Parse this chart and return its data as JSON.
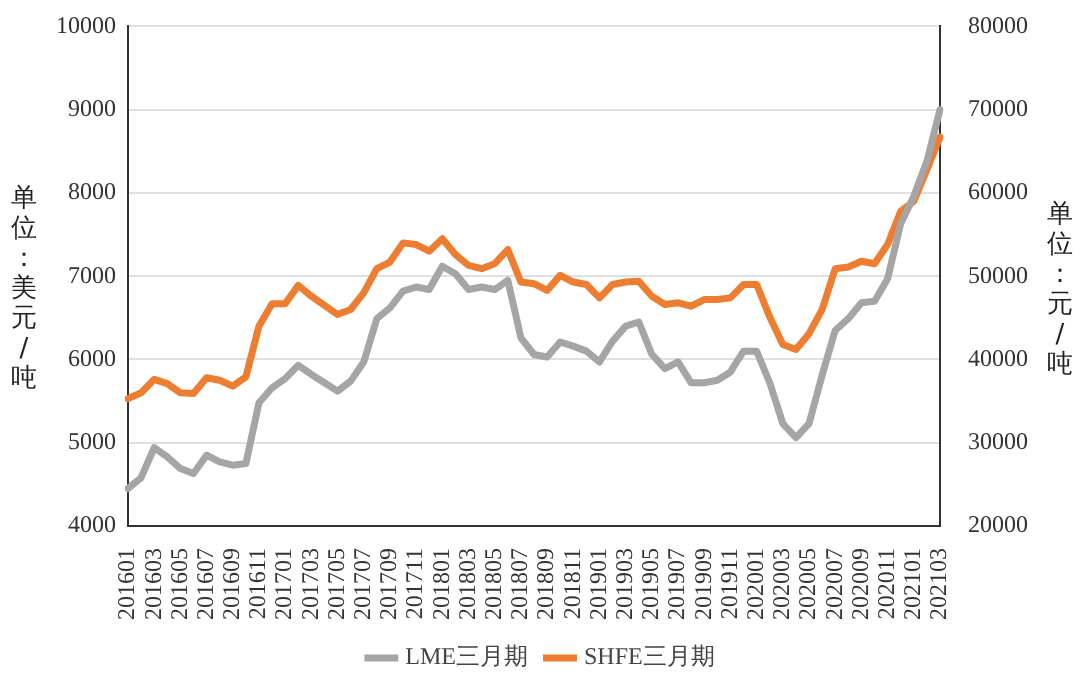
{
  "chart_data": {
    "type": "line",
    "ylabel": "单位：美元/吨",
    "y2label": "单位：元/吨",
    "categories": [
      "201601",
      null,
      "201603",
      null,
      "201605",
      null,
      "201607",
      null,
      "201609",
      null,
      "201611",
      null,
      "201701",
      null,
      "201703",
      null,
      "201705",
      null,
      "201707",
      null,
      "201709",
      null,
      "201711",
      null,
      "201801",
      null,
      "201803",
      null,
      "201805",
      null,
      "201807",
      null,
      "201809",
      null,
      "201811",
      null,
      "201901",
      null,
      "201903",
      null,
      "201905",
      null,
      "201907",
      null,
      "201909",
      null,
      "201911",
      null,
      "202001",
      null,
      "202003",
      null,
      "202005",
      null,
      "202007",
      null,
      "202009",
      null,
      "202011",
      null,
      "202101",
      null,
      "202103"
    ],
    "series": [
      {
        "name": "LME三月期",
        "color": "#a5a5a5",
        "values": [
          4450,
          4580,
          4940,
          4830,
          4690,
          4630,
          4850,
          4770,
          4730,
          4750,
          5480,
          5660,
          5770,
          5930,
          5820,
          5720,
          5620,
          5740,
          5970,
          6490,
          6620,
          6820,
          6870,
          6840,
          7120,
          7030,
          6840,
          6870,
          6840,
          6950,
          6260,
          6060,
          6030,
          6210,
          6160,
          6100,
          5970,
          6220,
          6400,
          6450,
          6060,
          5890,
          5970,
          5720,
          5720,
          5750,
          5850,
          6100,
          6100,
          5720,
          5230,
          5060,
          5230,
          5810,
          6350,
          6490,
          6680,
          6700,
          6970,
          7630,
          7960,
          8380,
          9000
        ]
      },
      {
        "name": "SHFE三月期",
        "color": "#ed7d31",
        "axis": "y2",
        "values": [
          35300,
          36000,
          37600,
          37100,
          36000,
          35900,
          37800,
          37500,
          36800,
          37900,
          44000,
          46700,
          46700,
          48900,
          47600,
          46500,
          45400,
          46000,
          48000,
          50900,
          51700,
          54000,
          53800,
          53000,
          54500,
          52600,
          51300,
          50900,
          51500,
          53200,
          49300,
          49100,
          48300,
          50100,
          49300,
          49000,
          47400,
          49000,
          49300,
          49400,
          47600,
          46600,
          46800,
          46400,
          47200,
          47200,
          47400,
          49000,
          49000,
          45100,
          41800,
          41200,
          43100,
          46000,
          50900,
          51100,
          51800,
          51500,
          53800,
          57800,
          59000,
          62800,
          66700
        ]
      }
    ],
    "ylim": [
      4000,
      10000
    ],
    "yticks": [
      4000,
      5000,
      6000,
      7000,
      8000,
      9000,
      10000
    ],
    "y2lim": [
      20000,
      80000
    ],
    "y2ticks": [
      20000,
      30000,
      40000,
      50000,
      60000,
      70000,
      80000
    ],
    "grid": "y",
    "legend": "bottom",
    "marker": "none",
    "line_style": "solid"
  }
}
